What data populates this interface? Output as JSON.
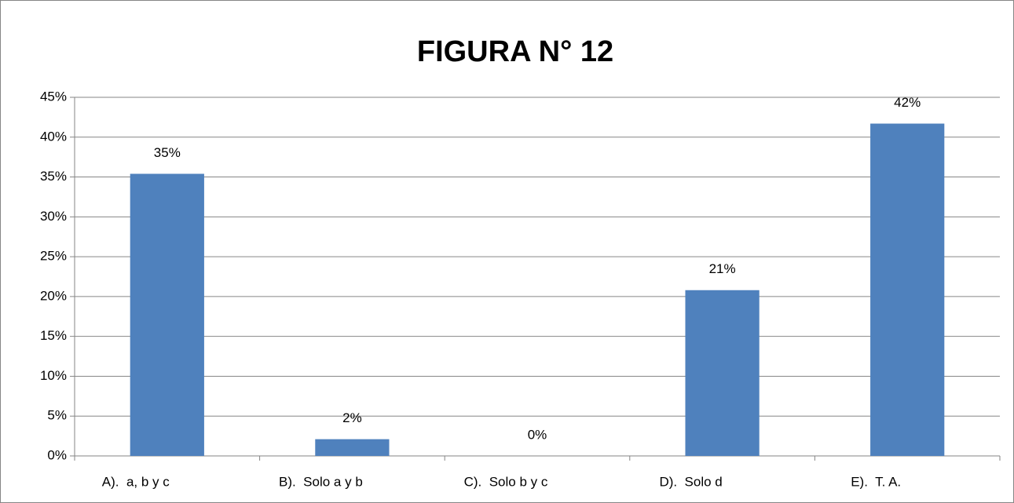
{
  "chart_data": {
    "type": "bar",
    "title": "FIGURA N° 12",
    "categories": [
      "A).  a, b y c",
      "B).  Solo a y b",
      "C).  Solo b y c",
      "D).  Solo d",
      "E).  T. A."
    ],
    "values": [
      35.4,
      2.1,
      0,
      20.8,
      41.7
    ],
    "value_labels": [
      "35%",
      "2%",
      "0%",
      "21%",
      "42%"
    ],
    "color": "#4f81bd",
    "ylim": [
      0,
      45
    ],
    "yticks": [
      {
        "value": 0,
        "label": "0%"
      },
      {
        "value": 5,
        "label": "5%"
      },
      {
        "value": 10,
        "label": "10%"
      },
      {
        "value": 15,
        "label": "15%"
      },
      {
        "value": 20,
        "label": "20%"
      },
      {
        "value": 25,
        "label": "25%"
      },
      {
        "value": 30,
        "label": "30%"
      },
      {
        "value": 35,
        "label": "35%"
      },
      {
        "value": 40,
        "label": "40%"
      },
      {
        "value": 45,
        "label": "45%"
      }
    ],
    "grid": true
  }
}
